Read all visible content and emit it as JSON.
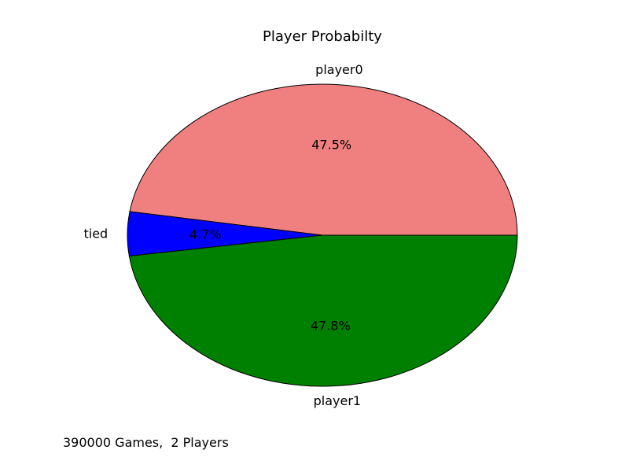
{
  "chart_data": {
    "type": "pie",
    "title": "Player Probabilty",
    "slices": [
      {
        "label": "player0",
        "value": 47.5,
        "pct_label": "47.5%",
        "color": "#f08080"
      },
      {
        "label": "tied",
        "value": 4.7,
        "pct_label": "4.7%",
        "color": "#0000ff"
      },
      {
        "label": "player1",
        "value": 47.8,
        "pct_label": "47.8%",
        "color": "#008000"
      }
    ],
    "start_angle_deg": 0,
    "direction": "counterclockwise",
    "edge_color": "#000000"
  },
  "footer": {
    "note": "390000 Games,  2 Players"
  }
}
